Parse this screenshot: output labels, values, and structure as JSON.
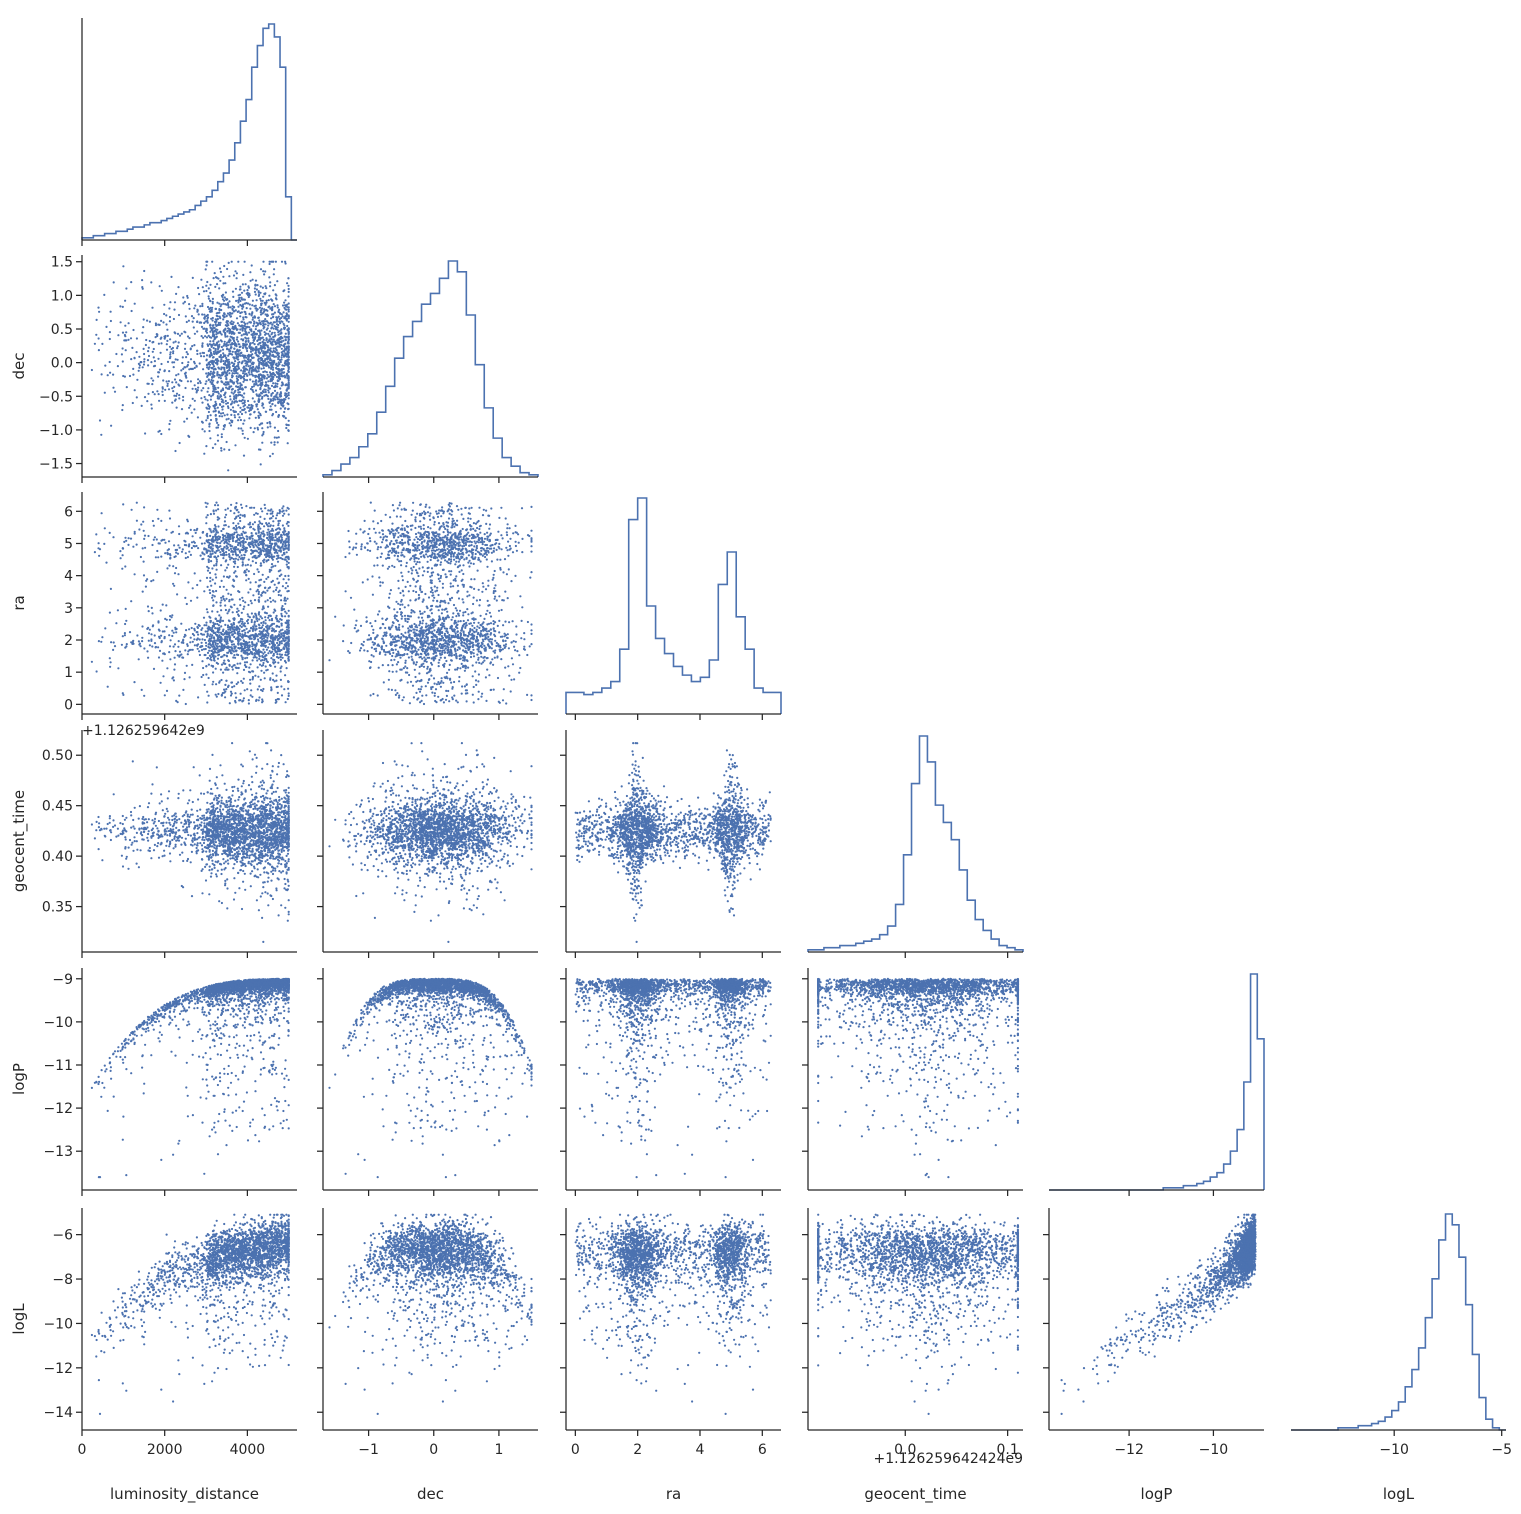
{
  "chart_data": {
    "type": "scatter",
    "plot_kind": "pairplot (corner), diagonal = step histograms, off-diagonal = scatter",
    "variables": [
      {
        "key": "luminosity_distance",
        "label": "luminosity_distance",
        "lim": [
          0,
          5200
        ],
        "ticks": [
          0,
          2000,
          4000
        ],
        "tick_labels": [
          "0",
          "2000",
          "4000"
        ]
      },
      {
        "key": "dec",
        "label": "dec",
        "lim": [
          -1.7,
          1.6
        ],
        "ticks": [
          -1.5,
          -1.0,
          -0.5,
          0.0,
          0.5,
          1.0,
          1.5
        ],
        "tick_labels": [
          "−1.5",
          "−1.0",
          "−0.5",
          "0.0",
          "0.5",
          "1.0",
          "1.5"
        ],
        "x_ticks": [
          -1,
          0,
          1
        ],
        "x_tick_labels": [
          "−1",
          "0",
          "1"
        ]
      },
      {
        "key": "ra",
        "label": "ra",
        "lim": [
          -0.3,
          6.6
        ],
        "ticks": [
          0,
          1,
          2,
          3,
          4,
          5,
          6
        ],
        "tick_labels": [
          "0",
          "1",
          "2",
          "3",
          "4",
          "5",
          "6"
        ],
        "x_ticks": [
          0,
          2,
          4,
          6
        ],
        "x_tick_labels": [
          "0",
          "2",
          "4",
          "6"
        ]
      },
      {
        "key": "geocent_time",
        "label": "geocent_time",
        "lim": [
          0.305,
          0.525
        ],
        "ticks": [
          0.35,
          0.4,
          0.45,
          0.5
        ],
        "tick_labels": [
          "0.35",
          "0.40",
          "0.45",
          "0.50"
        ],
        "offset_text": "+1.126259642e9",
        "x_lim": [
          -0.095,
          0.115
        ],
        "x_ticks": [
          0.0,
          0.1
        ],
        "x_tick_labels": [
          "0.0",
          "0.1"
        ],
        "x_offset_text": "+1.126259642424e9"
      },
      {
        "key": "logP",
        "label": "logP",
        "lim": [
          -13.9,
          -8.75
        ],
        "ticks": [
          -13,
          -12,
          -11,
          -10,
          -9
        ],
        "tick_labels": [
          "−13",
          "−12",
          "−11",
          "−10",
          "−9"
        ],
        "x_lim": [
          -13.9,
          -8.8
        ],
        "x_ticks": [
          -12,
          -10
        ],
        "x_tick_labels": [
          "−12",
          "−10"
        ]
      },
      {
        "key": "logL",
        "label": "logL",
        "lim": [
          -14.8,
          -4.8
        ],
        "ticks": [
          -14,
          -12,
          -10,
          -8,
          -6
        ],
        "tick_labels": [
          "−14",
          "−12",
          "−10",
          "−8",
          "−6"
        ],
        "x_lim": [
          -14.8,
          -4.8
        ],
        "x_ticks": [
          -10,
          -5
        ],
        "x_tick_labels": [
          "−10",
          "−5"
        ]
      }
    ],
    "histograms": {
      "luminosity_distance": [
        1,
        1,
        2,
        2,
        3,
        3,
        4,
        4,
        5,
        6,
        6,
        7,
        8,
        8,
        9,
        10,
        11,
        12,
        13,
        14,
        16,
        18,
        20,
        23,
        27,
        31,
        37,
        45,
        55,
        65,
        80,
        90,
        98,
        100,
        94,
        80,
        20,
        0
      ],
      "dec": [
        1,
        3,
        6,
        9,
        14,
        20,
        30,
        42,
        55,
        65,
        72,
        80,
        85,
        92,
        100,
        95,
        75,
        52,
        32,
        18,
        9,
        5,
        2,
        1
      ],
      "ra": [
        10,
        10,
        9,
        10,
        12,
        15,
        30,
        90,
        100,
        50,
        35,
        28,
        22,
        18,
        15,
        17,
        25,
        60,
        75,
        45,
        30,
        12,
        10,
        10
      ],
      "geocent_time": [
        1,
        1,
        2,
        2,
        3,
        3,
        4,
        5,
        6,
        8,
        12,
        22,
        45,
        78,
        100,
        88,
        68,
        60,
        52,
        38,
        24,
        15,
        10,
        6,
        3,
        2,
        1
      ],
      "logP": [
        0,
        0,
        0,
        0,
        0,
        0,
        0,
        0,
        0,
        0,
        0,
        0,
        0,
        0,
        0,
        0,
        0,
        1,
        1,
        1,
        2,
        2,
        3,
        4,
        6,
        8,
        12,
        18,
        28,
        50,
        100,
        70
      ],
      "logL": [
        0,
        0,
        0,
        0,
        0,
        0,
        0,
        1,
        1,
        1,
        2,
        2,
        3,
        4,
        6,
        9,
        13,
        20,
        28,
        38,
        52,
        70,
        88,
        100,
        95,
        80,
        58,
        35,
        15,
        5,
        1,
        0
      ]
    },
    "correlations_shown": [
      "logP rises with luminosity_distance toward an upper bound near -9",
      "logL rises with luminosity_distance and with logP",
      "ra is bimodal with peaks near 2 and 5",
      "geocent_time spreads widest near ra ≈ 2 and ra ≈ 5"
    ],
    "n_points_per_panel_approx": 2400,
    "marker_color": "#4c72b0",
    "grid": false,
    "legend": "none"
  }
}
